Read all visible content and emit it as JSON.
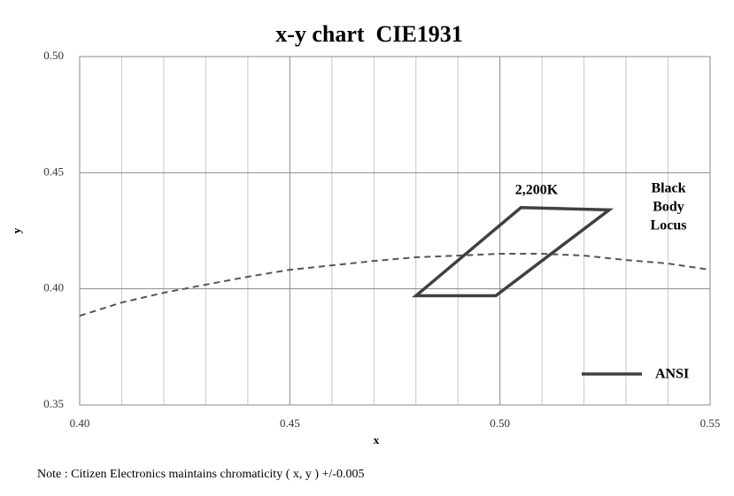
{
  "chart_data": {
    "type": "line",
    "title": "x-y chart  CIE1931",
    "x_label": "x",
    "y_label": "y",
    "xlim": [
      0.4,
      0.55
    ],
    "ylim": [
      0.35,
      0.5
    ],
    "xticks": [
      {
        "value": 0.4,
        "label": "0.40"
      },
      {
        "value": 0.45,
        "label": "0.45"
      },
      {
        "value": 0.5,
        "label": "0.50"
      },
      {
        "value": 0.55,
        "label": "0.55"
      }
    ],
    "x_minor_ticks": [
      0.41,
      0.42,
      0.43,
      0.44,
      0.46,
      0.47,
      0.48,
      0.49,
      0.51,
      0.52,
      0.53,
      0.54
    ],
    "yticks": [
      {
        "value": 0.35,
        "label": "0.35"
      },
      {
        "value": 0.4,
        "label": "0.40"
      },
      {
        "value": 0.45,
        "label": "0.45"
      },
      {
        "value": 0.5,
        "label": "0.50"
      }
    ],
    "grid": true,
    "legend": "lower right",
    "series": [
      {
        "name": "ANSI",
        "color": "#404040",
        "closed": true,
        "x": [
          0.48,
          0.505,
          0.526,
          0.499
        ],
        "values": [
          0.397,
          0.435,
          0.434,
          0.397
        ]
      }
    ],
    "locus": {
      "label": [
        "Black",
        "Body",
        "Locus"
      ],
      "color": "#555555",
      "x": [
        0.4,
        0.41,
        0.42,
        0.43,
        0.44,
        0.45,
        0.46,
        0.47,
        0.48,
        0.49,
        0.5,
        0.51,
        0.52,
        0.53,
        0.54,
        0.55
      ],
      "values": [
        0.3884,
        0.3941,
        0.3983,
        0.4018,
        0.4052,
        0.4082,
        0.4101,
        0.412,
        0.4136,
        0.4143,
        0.4151,
        0.4151,
        0.4143,
        0.4124,
        0.4109,
        0.4082
      ]
    },
    "annotation": "2,200K",
    "note": "Note : Citizen Electronics maintains chromaticity ( x, y ) +/-0.005"
  }
}
